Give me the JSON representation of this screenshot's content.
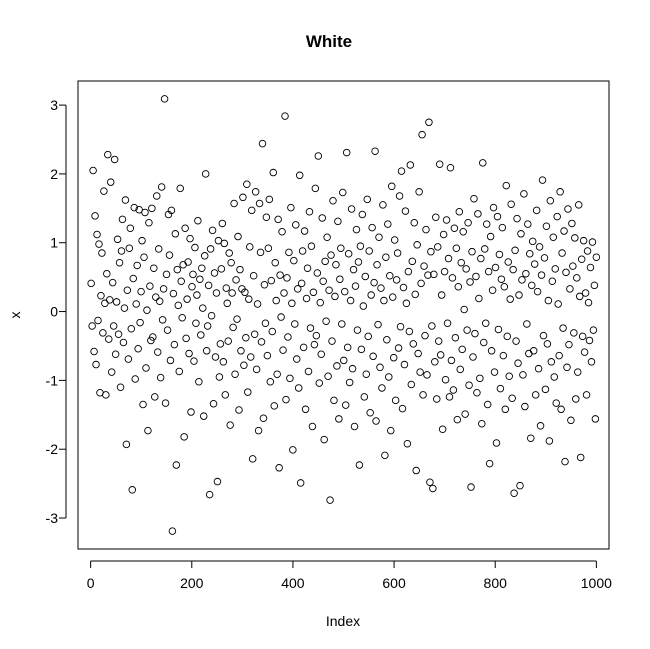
{
  "chart_data": {
    "type": "scatter",
    "title": "White",
    "xlabel": "Index",
    "ylabel": "x",
    "xlim": [
      -25,
      1025
    ],
    "ylim": [
      -3.45,
      3.35
    ],
    "xticks": [
      0,
      200,
      400,
      600,
      800,
      1000
    ],
    "yticks": [
      -3,
      -2,
      -1,
      0,
      1,
      2,
      3
    ],
    "grid": false,
    "legend": "none",
    "series": [
      {
        "marker": "open-circle",
        "color": "#000000",
        "x": "1..1000",
        "values": [
          0.41,
          -0.21,
          2.05,
          -0.58,
          1.39,
          -0.77,
          1.12,
          -0.13,
          0.98,
          -1.18,
          0.23,
          0.85,
          -0.31,
          1.75,
          0.12,
          -1.21,
          0.55,
          2.28,
          -0.4,
          0.17,
          1.88,
          -0.88,
          0.42,
          -0.21,
          2.21,
          -0.62,
          0.14,
          1.05,
          -0.33,
          0.71,
          -1.1,
          0.88,
          1.34,
          -0.45,
          0.05,
          1.62,
          -1.93,
          0.31,
          -0.69,
          0.92,
          1.21,
          -0.25,
          -2.59,
          0.48,
          1.51,
          -0.98,
          0.11,
          0.67,
          -0.54,
          1.48,
          -0.16,
          0.29,
          1.03,
          -1.35,
          0.79,
          1.44,
          -0.82,
          0.02,
          -1.73,
          1.29,
          0.37,
          -0.42,
          1.5,
          -0.37,
          0.63,
          -1.24,
          0.21,
          1.68,
          -0.59,
          0.91,
          0.15,
          -0.96,
          1.81,
          -0.12,
          0.33,
          3.09,
          -1.33,
          0.54,
          -0.27,
          1.41,
          0.82,
          -0.71,
          1.47,
          -3.19,
          0.26,
          -0.48,
          1.13,
          -2.23,
          0.61,
          0.09,
          -0.87,
          1.79,
          0.44,
          -0.09,
          0.68,
          -1.82,
          1.21,
          -0.39,
          0.18,
          0.72,
          -0.61,
          1.06,
          -1.46,
          0.36,
          0.54,
          -0.72,
          0.93,
          -0.17,
          0.24,
          1.32,
          -1.02,
          0.47,
          -0.34,
          0.63,
          0.05,
          -1.52,
          0.81,
          2.0,
          -0.57,
          -0.21,
          0.38,
          -2.66,
          0.91,
          -0.06,
          1.18,
          -1.34,
          0.56,
          -0.66,
          0.27,
          -2.47,
          1.03,
          -0.95,
          -0.47,
          0.62,
          1.28,
          -0.73,
          0.99,
          -1.21,
          0.34,
          0.12,
          -0.43,
          0.85,
          -1.65,
          0.71,
          0.27,
          -0.23,
          1.57,
          -0.91,
          0.46,
          -0.11,
          1.09,
          -1.43,
          0.61,
          -0.57,
          0.33,
          1.66,
          -0.78,
          0.28,
          -0.38,
          1.85,
          -1.17,
          0.18,
          0.94,
          -0.66,
          1.47,
          -2.14,
          0.52,
          -0.33,
          1.74,
          -0.84,
          0.11,
          -1.73,
          1.57,
          0.86,
          -0.44,
          2.44,
          -1.55,
          0.39,
          -0.17,
          1.37,
          -0.64,
          0.92,
          1.63,
          -1.02,
          0.45,
          -0.29,
          2.02,
          -1.37,
          0.71,
          0.16,
          -0.91,
          1.34,
          -2.27,
          0.53,
          -0.08,
          1.16,
          -0.56,
          0.27,
          2.84,
          -1.28,
          0.49,
          -0.37,
          0.86,
          -0.97,
          1.51,
          0.12,
          -2.01,
          0.74,
          -0.18,
          1.26,
          -0.69,
          0.33,
          -1.11,
          1.98,
          -2.49,
          0.41,
          0.88,
          -0.52,
          1.17,
          -1.42,
          0.19,
          0.63,
          -0.87,
          1.45,
          -0.24,
          0.95,
          -1.67,
          0.28,
          -0.48,
          1.79,
          -0.35,
          0.56,
          2.26,
          -1.04,
          0.13,
          -0.62,
          1.36,
          0.44,
          -1.86,
          0.73,
          -0.14,
          1.08,
          -0.94,
          0.31,
          -2.74,
          0.82,
          -0.43,
          1.61,
          -1.29,
          0.22,
          0.68,
          -0.79,
          1.31,
          -1.56,
          0.47,
          0.92,
          -0.18,
          1.73,
          -0.71,
          0.29,
          -1.36,
          2.31,
          -0.52,
          0.84,
          -1.03,
          0.16,
          1.49,
          -0.83,
          0.61,
          -1.67,
          0.37,
          1.19,
          -0.27,
          0.72,
          -2.23,
          0.95,
          -0.55,
          1.41,
          0.08,
          -1.24,
          0.51,
          -0.91,
          1.63,
          -0.36,
          0.88,
          -1.47,
          0.24,
          1.22,
          -0.65,
          0.42,
          2.33,
          -1.59,
          0.68,
          -0.19,
          1.08,
          -0.81,
          0.34,
          -1.11,
          1.55,
          0.16,
          -2.09,
          0.79,
          -0.41,
          1.27,
          -0.95,
          0.52,
          -1.73,
          1.82,
          0.21,
          -0.67,
          1.04,
          -1.29,
          0.46,
          0.85,
          -0.53,
          1.68,
          -0.22,
          2.04,
          -1.41,
          0.35,
          -0.77,
          1.46,
          0.12,
          -1.92,
          0.58,
          -0.29,
          2.13,
          -1.06,
          0.73,
          -0.47,
          1.29,
          0.25,
          -2.31,
          0.97,
          -0.61,
          1.74,
          -0.88,
          0.41,
          2.57,
          -1.21,
          0.66,
          -0.35,
          1.19,
          -0.92,
          0.53,
          2.75,
          -2.48,
          0.87,
          -0.21,
          -2.57,
          0.54,
          -0.73,
          1.37,
          -1.27,
          0.94,
          -0.43,
          2.14,
          -0.63,
          0.24,
          -1.71,
          1.12,
          0.58,
          -0.99,
          1.33,
          -0.17,
          0.77,
          -1.24,
          2.09,
          -0.71,
          0.49,
          -1.14,
          1.21,
          -0.38,
          0.92,
          -1.57,
          0.36,
          1.45,
          -0.84,
          0.71,
          -0.55,
          1.16,
          0.03,
          -1.49,
          0.62,
          -0.27,
          1.29,
          -1.07,
          0.43,
          -2.55,
          0.87,
          -0.66,
          1.64,
          -0.32,
          0.51,
          -1.18,
          1.42,
          0.19,
          -0.97,
          0.77,
          -1.63,
          2.16,
          -0.45,
          0.91,
          -0.17,
          1.27,
          -1.35,
          0.58,
          -2.21,
          1.09,
          -0.57,
          0.31,
          1.51,
          -0.88,
          0.64,
          -1.91,
          1.38,
          -0.26,
          0.83,
          -1.12,
          0.47,
          1.22,
          -0.64,
          0.36,
          -1.42,
          1.83,
          -0.36,
          0.72,
          -0.94,
          0.18,
          1.56,
          -1.26,
          0.61,
          -2.64,
          0.89,
          -0.43,
          1.35,
          -0.75,
          0.24,
          -2.53,
          1.13,
          0.46,
          -0.92,
          1.71,
          -1.38,
          0.55,
          -0.18,
          1.27,
          -0.61,
          0.84,
          -1.84,
          0.38,
          1.02,
          -0.57,
          0.69,
          -1.21,
          1.47,
          0.29,
          -0.83,
          0.94,
          -1.66,
          0.53,
          1.91,
          -0.35,
          0.78,
          -1.13,
          1.24,
          -0.47,
          0.16,
          -1.88,
          1.61,
          -0.73,
          0.44,
          1.08,
          -0.95,
          0.62,
          -1.33,
          1.38,
          0.11,
          -0.64,
          1.74,
          -1.42,
          0.85,
          -0.24,
          1.17,
          -2.18,
          0.57,
          -0.81,
          1.49,
          -0.48,
          0.33,
          -1.58,
          1.28,
          0.66,
          -0.31,
          1.07,
          -1.27,
          0.49,
          -0.88,
          1.55,
          0.22,
          -2.12,
          0.76,
          -0.36,
          1.03,
          -0.59,
          0.27,
          -1.21,
          0.88,
          0.13,
          -0.42,
          0.64,
          -0.73,
          1.01,
          -0.27,
          0.38,
          -1.56,
          0.79
        ]
      }
    ]
  }
}
